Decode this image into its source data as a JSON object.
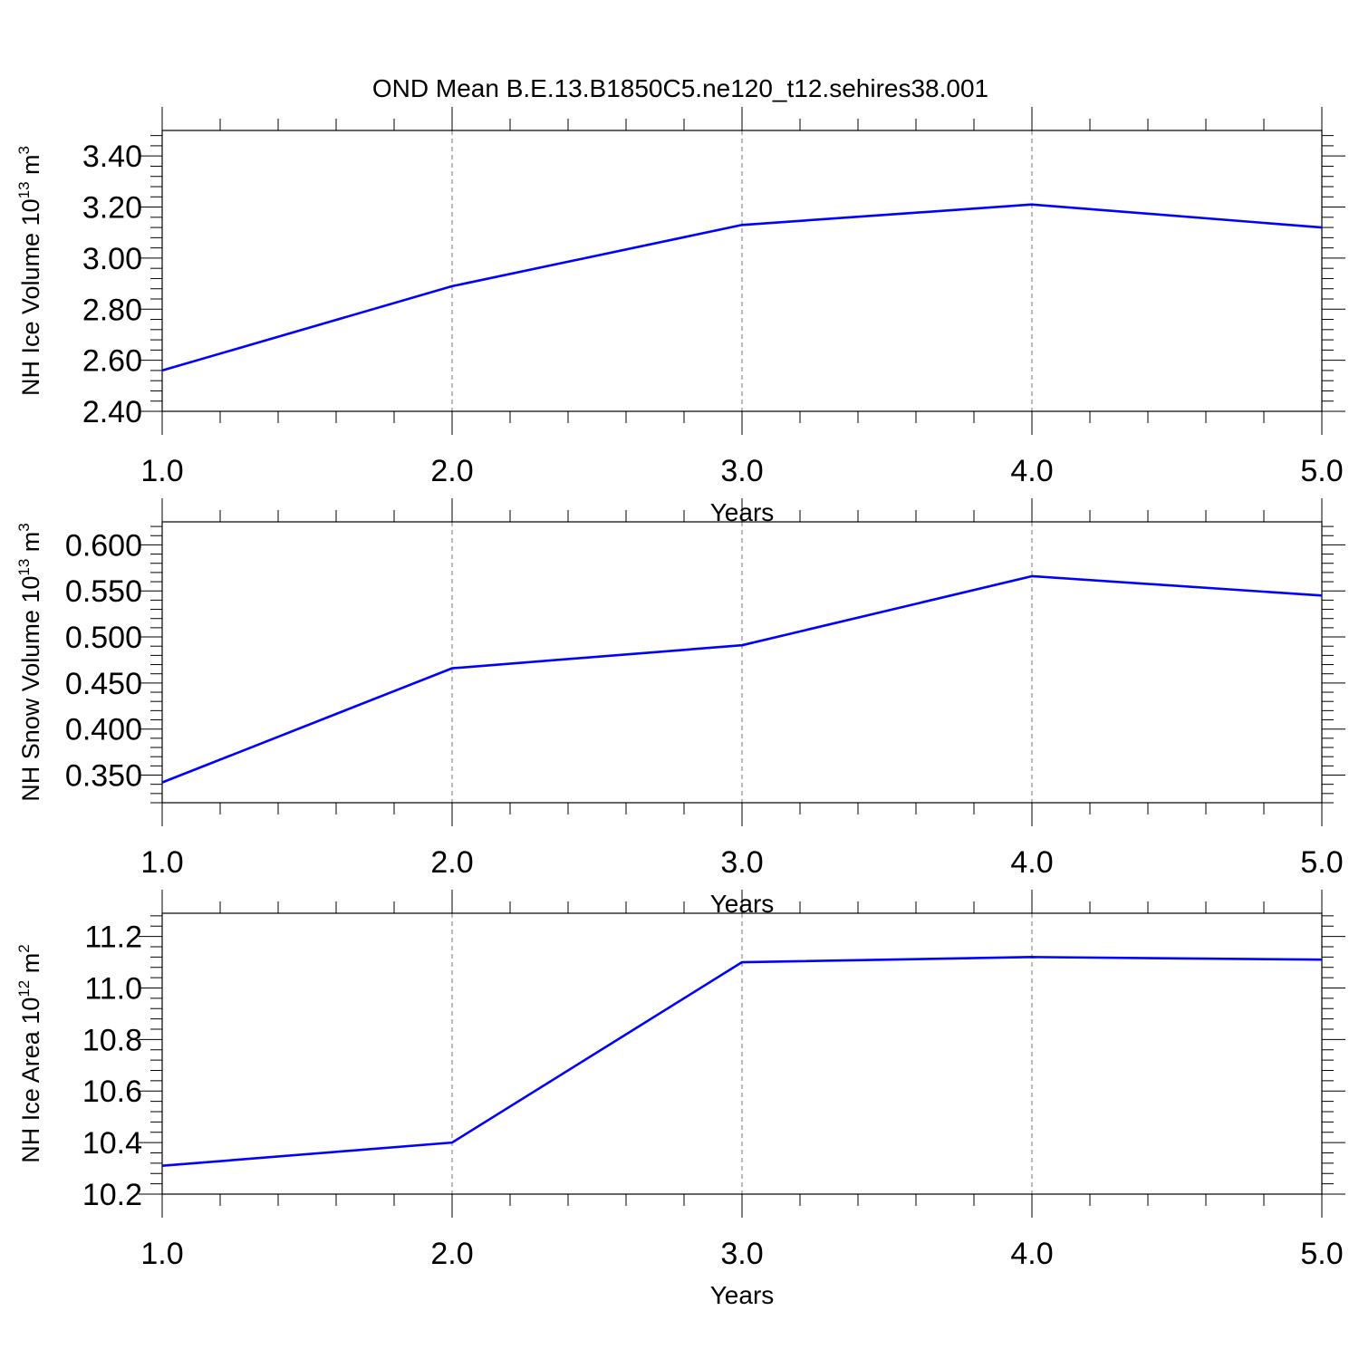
{
  "figure": {
    "title": "OND Mean B.E.13.B1850C5.ne120_t12.sehires38.001"
  },
  "chart_data": [
    {
      "type": "line",
      "ylabel": "NH Ice Volume 10",
      "ylabel_exp": "13",
      "ylabel_unit": " m",
      "ylabel_unit_exp": "3",
      "xlabel": "Years",
      "x": [
        1.0,
        2.0,
        3.0,
        4.0,
        5.0
      ],
      "x_ticks": [
        "1.0",
        "2.0",
        "3.0",
        "4.0",
        "5.0"
      ],
      "y_ticks": [
        "2.40",
        "2.60",
        "2.80",
        "3.00",
        "3.20",
        "3.40"
      ],
      "y_tick_values": [
        2.4,
        2.6,
        2.8,
        3.0,
        3.2,
        3.4
      ],
      "series": [
        {
          "values": [
            2.56,
            2.89,
            3.13,
            3.21,
            3.12
          ],
          "color": "#0000ff"
        }
      ],
      "xlim": [
        1.0,
        5.0
      ],
      "ylim": [
        2.4,
        3.5
      ],
      "grid": "x-dashed"
    },
    {
      "type": "line",
      "ylabel": "NH Snow Volume 10",
      "ylabel_exp": "13",
      "ylabel_unit": " m",
      "ylabel_unit_exp": "3",
      "xlabel": "Years",
      "x": [
        1.0,
        2.0,
        3.0,
        4.0,
        5.0
      ],
      "x_ticks": [
        "1.0",
        "2.0",
        "3.0",
        "4.0",
        "5.0"
      ],
      "y_ticks": [
        "0.350",
        "0.400",
        "0.450",
        "0.500",
        "0.550",
        "0.600"
      ],
      "y_tick_values": [
        0.35,
        0.4,
        0.45,
        0.5,
        0.55,
        0.6
      ],
      "series": [
        {
          "values": [
            0.342,
            0.466,
            0.491,
            0.566,
            0.545
          ],
          "color": "#0000ff"
        }
      ],
      "xlim": [
        1.0,
        5.0
      ],
      "ylim": [
        0.32,
        0.625
      ],
      "grid": "x-dashed"
    },
    {
      "type": "line",
      "ylabel": "NH Ice Area 10",
      "ylabel_exp": "12",
      "ylabel_unit": " m",
      "ylabel_unit_exp": "2",
      "xlabel": "Years",
      "x": [
        1.0,
        2.0,
        3.0,
        4.0,
        5.0
      ],
      "x_ticks": [
        "1.0",
        "2.0",
        "3.0",
        "4.0",
        "5.0"
      ],
      "y_ticks": [
        "10.2",
        "10.4",
        "10.6",
        "10.8",
        "11.0",
        "11.2"
      ],
      "y_tick_values": [
        10.2,
        10.4,
        10.6,
        10.8,
        11.0,
        11.2
      ],
      "series": [
        {
          "values": [
            10.31,
            10.4,
            11.1,
            11.12,
            11.11
          ],
          "color": "#0000ff"
        }
      ],
      "xlim": [
        1.0,
        5.0
      ],
      "ylim": [
        10.2,
        11.29
      ],
      "grid": "x-dashed"
    }
  ]
}
